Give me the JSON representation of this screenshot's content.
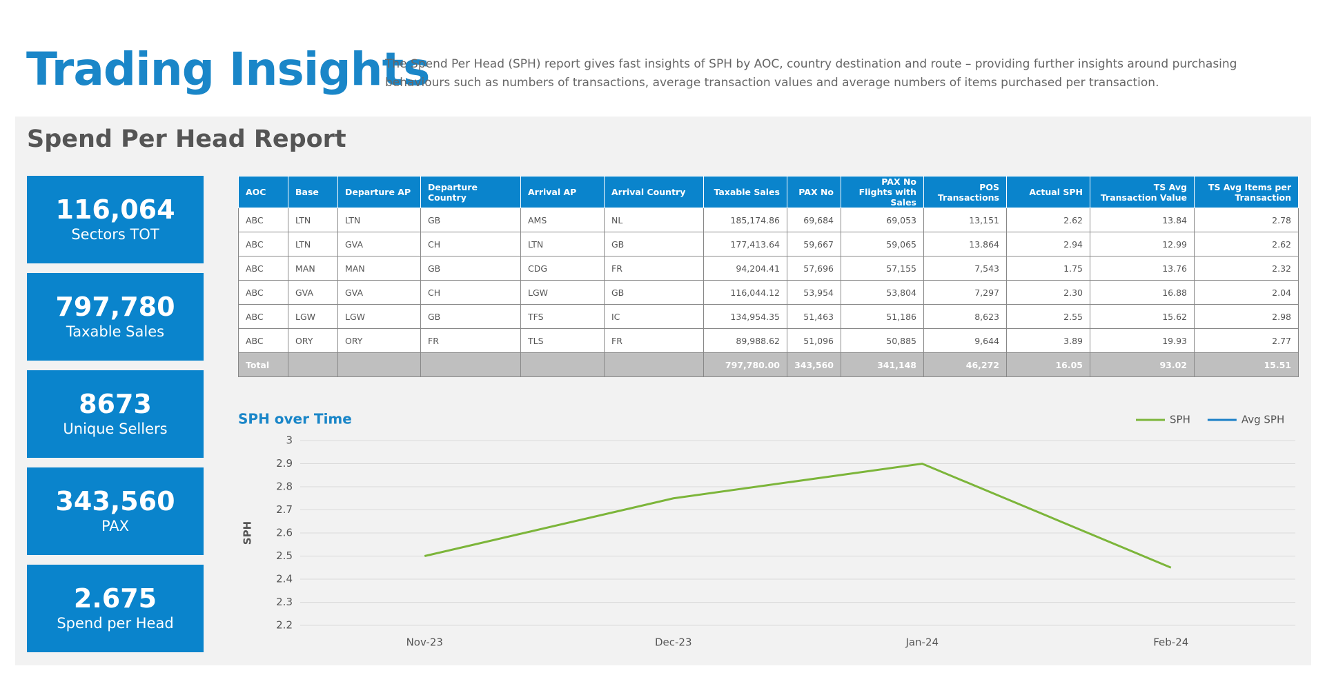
{
  "header": {
    "title": "Trading Insights",
    "description": "The Spend Per Head (SPH) report gives fast insights of SPH by AOC, country destination and route – providing further insights around purchasing behaviours such as numbers of transactions, average transaction values and average numbers of items purchased per transaction."
  },
  "report": {
    "title": "Spend Per Head Report",
    "kpis": [
      {
        "value": "116,064",
        "label": "Sectors TOT"
      },
      {
        "value": "797,780",
        "label": "Taxable Sales"
      },
      {
        "value": "8673",
        "label": "Unique Sellers"
      },
      {
        "value": "343,560",
        "label": "PAX"
      },
      {
        "value": "2.675",
        "label": "Spend per Head"
      }
    ],
    "table": {
      "columns": [
        "AOC",
        "Base",
        "Departure AP",
        "Departure Country",
        "Arrival AP",
        "Arrival Country",
        "Taxable Sales",
        "PAX No",
        "PAX No Flights with Sales",
        "POS Transactions",
        "Actual SPH",
        "TS Avg Transaction Value",
        "TS Avg Items per Transaction"
      ],
      "rows": [
        [
          "ABC",
          "LTN",
          "LTN",
          "GB",
          "AMS",
          "NL",
          "185,174.86",
          "69,684",
          "69,053",
          "13,151",
          "2.62",
          "13.84",
          "2.78"
        ],
        [
          "ABC",
          "LTN",
          "GVA",
          "CH",
          "LTN",
          "GB",
          "177,413.64",
          "59,667",
          "59,065",
          "13.864",
          "2.94",
          "12.99",
          "2.62"
        ],
        [
          "ABC",
          "MAN",
          "MAN",
          "GB",
          "CDG",
          "FR",
          "94,204.41",
          "57,696",
          "57,155",
          "7,543",
          "1.75",
          "13.76",
          "2.32"
        ],
        [
          "ABC",
          "GVA",
          "GVA",
          "CH",
          "LGW",
          "GB",
          "116,044.12",
          "53,954",
          "53,804",
          "7,297",
          "2.30",
          "16.88",
          "2.04"
        ],
        [
          "ABC",
          "LGW",
          "LGW",
          "GB",
          "TFS",
          "IC",
          "134,954.35",
          "51,463",
          "51,186",
          "8,623",
          "2.55",
          "15.62",
          "2.98"
        ],
        [
          "ABC",
          "ORY",
          "ORY",
          "FR",
          "TLS",
          "FR",
          "89,988.62",
          "51,096",
          "50,885",
          "9,644",
          "3.89",
          "19.93",
          "2.77"
        ]
      ],
      "total": {
        "label": "Total",
        "values": [
          "797,780.00",
          "343,560",
          "341,148",
          "46,272",
          "16.05",
          "93.02",
          "15.51"
        ]
      }
    }
  },
  "chart_data": {
    "type": "line",
    "title": "SPH over Time",
    "y_label": "SPH",
    "categories": [
      "Nov-23",
      "Dec-23",
      "Jan-24",
      "Feb-24"
    ],
    "series": [
      {
        "name": "SPH",
        "color": "#7cb53a",
        "values": [
          2.5,
          2.75,
          2.9,
          2.45
        ]
      },
      {
        "name": "Avg SPH",
        "color": "#1a7fc7",
        "values": [
          null,
          null,
          null,
          null
        ]
      }
    ],
    "ylim": [
      2.2,
      3
    ],
    "yticks": [
      2.2,
      2.3,
      2.4,
      2.5,
      2.6,
      2.7,
      2.8,
      2.9,
      3
    ],
    "grid": true,
    "legend": "top-right"
  }
}
